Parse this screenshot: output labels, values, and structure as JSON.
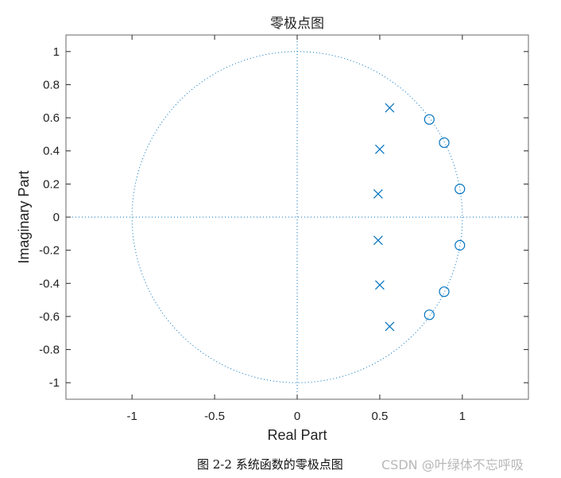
{
  "chart_data": {
    "type": "scatter",
    "title": "零极点图",
    "xlabel": "Real Part",
    "ylabel": "Imaginary Part",
    "xlim": [
      -1.4,
      1.4
    ],
    "ylim": [
      -1.1,
      1.1
    ],
    "xticks": [
      -1,
      -0.5,
      0,
      0.5,
      1
    ],
    "xtick_labels": [
      "-1",
      "-0.5",
      "0",
      "0.5",
      "1"
    ],
    "yticks": [
      1,
      0.8,
      0.6,
      0.4,
      0.2,
      0,
      -0.2,
      -0.4,
      -0.6,
      -0.8,
      -1
    ],
    "ytick_labels": [
      "1",
      "0.8",
      "0.6",
      "0.4",
      "0.2",
      "0",
      "-0.2",
      "-0.4",
      "-0.6",
      "-0.8",
      "-1"
    ],
    "grid": false,
    "unit_circle": true,
    "series": [
      {
        "name": "zeros",
        "marker": "o",
        "color": "#0072BD",
        "points": [
          [
            0.8,
            0.59
          ],
          [
            0.89,
            0.45
          ],
          [
            0.985,
            0.17
          ],
          [
            0.985,
            -0.17
          ],
          [
            0.89,
            -0.45
          ],
          [
            0.8,
            -0.59
          ]
        ]
      },
      {
        "name": "poles",
        "marker": "x",
        "color": "#0072BD",
        "points": [
          [
            0.56,
            0.66
          ],
          [
            0.5,
            0.41
          ],
          [
            0.49,
            0.14
          ],
          [
            0.49,
            -0.14
          ],
          [
            0.5,
            -0.41
          ],
          [
            0.56,
            -0.66
          ]
        ]
      }
    ]
  },
  "caption": "图 2-2 系统函数的零极点图",
  "watermark": "CSDN @叶绿体不忘呼吸",
  "colors": {
    "series": "#0072BD",
    "axis": "#262626",
    "box": "#808080"
  }
}
